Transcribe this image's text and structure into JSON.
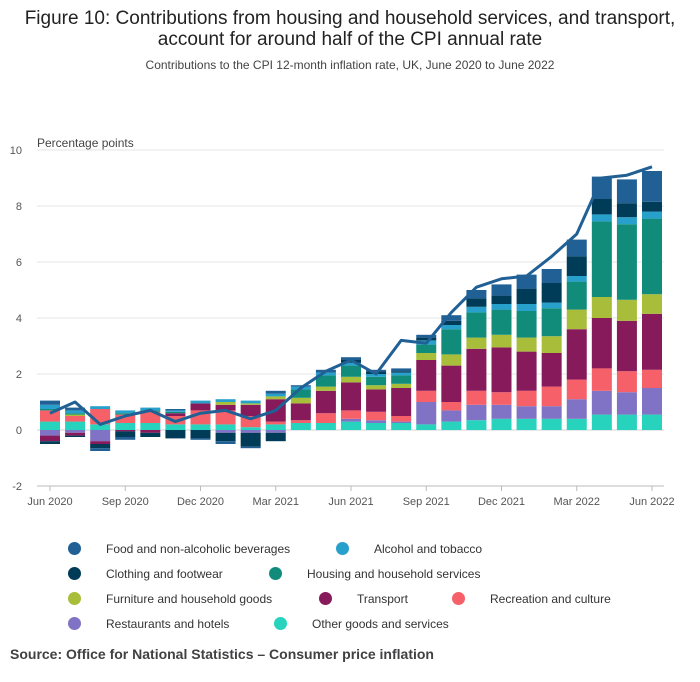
{
  "title": "Figure 10: Contributions from housing and household services, and transport, account for around half of the CPI annual rate",
  "subtitle": "Contributions to the CPI 12-month inflation rate, UK, June 2020 to June 2022",
  "source": "Source: Office for National Statistics – Consumer price inflation",
  "chart_data": {
    "type": "bar",
    "stacked": true,
    "ylabel": "Percentage points",
    "ylim": [
      -2,
      10
    ],
    "yticks": [
      "-2",
      "0",
      "2",
      "4",
      "6",
      "8",
      "10"
    ],
    "ytick_values": [
      -2,
      0,
      2,
      4,
      6,
      8,
      10
    ],
    "xtick_labels": [
      "Jun 2020",
      "Sep 2020",
      "Dec 2020",
      "Mar 2021",
      "Jun 2021",
      "Sep 2021",
      "Dec 2021",
      "Mar 2022",
      "Jun 2022"
    ],
    "xtick_index": [
      0,
      3,
      6,
      9,
      12,
      15,
      18,
      21,
      24
    ],
    "grid": true,
    "legend_position": "bottom",
    "categories": [
      "Jun 2020",
      "Jul 2020",
      "Aug 2020",
      "Sep 2020",
      "Oct 2020",
      "Nov 2020",
      "Dec 2020",
      "Jan 2021",
      "Feb 2021",
      "Mar 2021",
      "Apr 2021",
      "May 2021",
      "Jun 2021",
      "Jul 2021",
      "Aug 2021",
      "Sep 2021",
      "Oct 2021",
      "Nov 2021",
      "Dec 2021",
      "Jan 2022",
      "Feb 2022",
      "Mar 2022",
      "Apr 2022",
      "May 2022",
      "Jun 2022"
    ],
    "series": [
      {
        "name": "Other goods and services",
        "color": "#27d3bc",
        "values": [
          0.3,
          0.3,
          0.2,
          0.25,
          0.25,
          0.2,
          0.2,
          0.2,
          0.1,
          0.2,
          0.25,
          0.25,
          0.3,
          0.25,
          0.25,
          0.2,
          0.3,
          0.35,
          0.4,
          0.4,
          0.4,
          0.4,
          0.55,
          0.55,
          0.55
        ]
      },
      {
        "name": "Restaurants and hotels",
        "color": "#8073c5",
        "values": [
          -0.2,
          -0.1,
          -0.4,
          0.0,
          0.0,
          0.0,
          0.0,
          -0.1,
          -0.1,
          -0.1,
          0.0,
          0.0,
          0.1,
          0.1,
          0.05,
          0.8,
          0.4,
          0.55,
          0.5,
          0.45,
          0.45,
          0.7,
          0.85,
          0.8,
          0.95
        ]
      },
      {
        "name": "Recreation and culture",
        "color": "#f66068",
        "values": [
          0.4,
          0.2,
          0.55,
          0.3,
          0.4,
          0.3,
          0.5,
          0.5,
          0.4,
          0.1,
          0.1,
          0.35,
          0.3,
          0.3,
          0.2,
          0.4,
          0.3,
          0.5,
          0.45,
          0.55,
          0.7,
          0.7,
          0.8,
          0.75,
          0.65
        ]
      },
      {
        "name": "Transport",
        "color": "#871a5b",
        "values": [
          -0.2,
          -0.1,
          -0.1,
          -0.05,
          -0.1,
          0.1,
          0.25,
          0.2,
          0.4,
          0.8,
          0.6,
          0.8,
          1.0,
          0.8,
          1.0,
          1.1,
          1.3,
          1.5,
          1.6,
          1.4,
          1.2,
          1.8,
          1.8,
          1.8,
          2.0
        ]
      },
      {
        "name": "Furniture and household goods",
        "color": "#a8bd3a",
        "values": [
          0.0,
          0.05,
          0.0,
          0.0,
          0.0,
          0.0,
          0.0,
          0.1,
          0.05,
          0.1,
          0.2,
          0.15,
          0.2,
          0.15,
          0.15,
          0.25,
          0.4,
          0.4,
          0.45,
          0.5,
          0.6,
          0.7,
          0.75,
          0.75,
          0.7
        ]
      },
      {
        "name": "Housing and household services",
        "color": "#118c7b",
        "values": [
          0.05,
          0.05,
          0.0,
          0.05,
          0.05,
          0.05,
          0.0,
          0.0,
          0.0,
          0.0,
          0.3,
          0.4,
          0.4,
          0.3,
          0.3,
          0.3,
          0.9,
          0.9,
          0.9,
          0.95,
          1.0,
          1.0,
          2.7,
          2.7,
          2.7
        ]
      },
      {
        "name": "Alcohol and tobacco",
        "color": "#27a0cc",
        "values": [
          0.15,
          0.1,
          0.1,
          0.1,
          0.1,
          0.05,
          0.1,
          0.1,
          0.1,
          0.1,
          0.1,
          0.1,
          0.1,
          0.1,
          0.1,
          0.15,
          0.15,
          0.2,
          0.2,
          0.25,
          0.2,
          0.2,
          0.25,
          0.25,
          0.25
        ]
      },
      {
        "name": "Clothing and footwear",
        "color": "#003c57",
        "values": [
          -0.1,
          -0.05,
          -0.15,
          -0.2,
          -0.15,
          -0.3,
          -0.3,
          -0.3,
          -0.5,
          -0.3,
          0.0,
          0.0,
          0.1,
          0.1,
          0.05,
          0.1,
          0.15,
          0.3,
          0.3,
          0.55,
          0.7,
          0.7,
          0.55,
          0.5,
          0.35
        ]
      },
      {
        "name": "Food and non-alcoholic beverages",
        "color": "#206095",
        "values": [
          0.15,
          0.1,
          -0.1,
          -0.1,
          0.0,
          0.05,
          -0.05,
          -0.1,
          -0.05,
          0.1,
          0.05,
          0.1,
          0.1,
          0.05,
          0.1,
          0.1,
          0.2,
          0.3,
          0.4,
          0.5,
          0.5,
          0.6,
          0.8,
          0.85,
          1.1
        ]
      }
    ],
    "line": {
      "name": "CPI 12-month rate",
      "color": "#206095",
      "values": [
        0.6,
        1.0,
        0.2,
        0.5,
        0.7,
        0.3,
        0.6,
        0.7,
        0.4,
        0.7,
        1.5,
        2.1,
        2.5,
        2.0,
        3.2,
        3.1,
        4.2,
        5.1,
        5.4,
        5.5,
        6.2,
        7.0,
        9.0,
        9.1,
        9.4
      ]
    }
  },
  "legend": [
    {
      "label": "Food and non-alcoholic beverages",
      "color": "#206095"
    },
    {
      "label": "Alcohol and tobacco",
      "color": "#27a0cc"
    },
    {
      "label": "Clothing and footwear",
      "color": "#003c57"
    },
    {
      "label": "Housing and household services",
      "color": "#118c7b"
    },
    {
      "label": "Furniture and household goods",
      "color": "#a8bd3a"
    },
    {
      "label": "Transport",
      "color": "#871a5b"
    },
    {
      "label": "Recreation and culture",
      "color": "#f66068"
    },
    {
      "label": "Restaurants and hotels",
      "color": "#8073c5"
    },
    {
      "label": "Other goods and services",
      "color": "#27d3bc"
    }
  ]
}
